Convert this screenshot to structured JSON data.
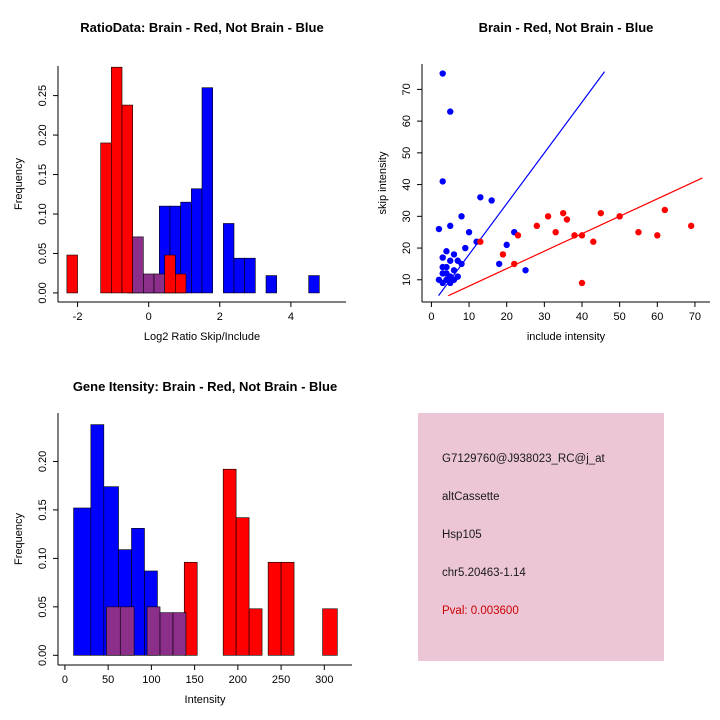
{
  "page": {
    "background": "#ffffff"
  },
  "colors": {
    "brain_red": "#FF0000",
    "not_brain_blue": "#0000FF",
    "overlap_purple": "#8B2F8B",
    "info_bg": "#ECC6D6",
    "pval_red": "#CC0000",
    "text_dark": "#1A1A1A"
  },
  "info_panel": {
    "bg": "#ECC6D6",
    "lines": [
      {
        "text": "G7129760@J938023_RC@j_at",
        "color": "#1A1A1A"
      },
      {
        "text": "altCassette",
        "color": "#1A1A1A"
      },
      {
        "text": "Hsp105",
        "color": "#1A1A1A"
      },
      {
        "text": "chr5.20463-1.14",
        "color": "#1A1A1A"
      },
      {
        "text": "Pval: 0.003600",
        "color": "#CC0000"
      }
    ]
  },
  "chart_data": [
    {
      "id": "ratio-hist",
      "type": "bar",
      "subtype": "overlaid-histogram",
      "title": "RatioData: Brain - Red, Not Brain - Blue",
      "xlabel": "Log2 Ratio Skip/Include",
      "ylabel": "Frequency",
      "xlim": [
        -2.55,
        5.55
      ],
      "ylim": [
        -0.0115,
        0.2875
      ],
      "grid": false,
      "xticks": [
        [
          -2,
          "-2"
        ],
        [
          0,
          "0"
        ],
        [
          2,
          "2"
        ],
        [
          4,
          "4"
        ]
      ],
      "yticks": [
        [
          0,
          "0.00"
        ],
        [
          0.05,
          "0.05"
        ],
        [
          0.1,
          "0.10"
        ],
        [
          0.15,
          "0.15"
        ],
        [
          0.2,
          "0.20"
        ],
        [
          0.25,
          "0.25"
        ]
      ],
      "colors": {
        "brain": "#FF0000",
        "not_brain": "#0000FF",
        "overlap": "#8B2F8B"
      },
      "bars": [
        [
          -0.6,
          -0.3,
          0.022,
          "not_brain"
        ],
        [
          -0.3,
          0.0,
          0.022,
          "not_brain"
        ],
        [
          0.0,
          0.3,
          0.022,
          "not_brain"
        ],
        [
          0.3,
          0.6,
          0.11,
          "not_brain"
        ],
        [
          0.6,
          0.9,
          0.11,
          "not_brain"
        ],
        [
          0.9,
          1.2,
          0.115,
          "not_brain"
        ],
        [
          1.2,
          1.5,
          0.132,
          "not_brain"
        ],
        [
          1.5,
          1.8,
          0.26,
          "not_brain"
        ],
        [
          2.1,
          2.4,
          0.088,
          "not_brain"
        ],
        [
          2.4,
          2.7,
          0.044,
          "not_brain"
        ],
        [
          2.7,
          3.0,
          0.044,
          "not_brain"
        ],
        [
          3.3,
          3.6,
          0.022,
          "not_brain"
        ],
        [
          4.5,
          4.8,
          0.022,
          "not_brain"
        ],
        [
          -2.3,
          -2.0,
          0.048,
          "brain"
        ],
        [
          -1.35,
          -1.05,
          0.19,
          "brain"
        ],
        [
          -1.05,
          -0.75,
          0.286,
          "brain"
        ],
        [
          -0.75,
          -0.45,
          0.238,
          "brain"
        ],
        [
          0.45,
          0.75,
          0.048,
          "brain"
        ],
        [
          0.75,
          1.05,
          0.024,
          "brain"
        ],
        [
          -0.45,
          -0.15,
          0.071,
          "overlap"
        ],
        [
          -0.15,
          0.15,
          0.024,
          "overlap"
        ],
        [
          0.15,
          0.45,
          0.024,
          "overlap"
        ]
      ],
      "plot": {
        "l": 58,
        "r": 346,
        "t": 66,
        "b": 302
      },
      "title_y": 32
    },
    {
      "id": "intensity-scatter",
      "type": "scatter",
      "title": "Brain - Red, Not Brain - Blue",
      "xlabel": "include intensity",
      "ylabel": "skip intensity",
      "xlim": [
        -2.5,
        74
      ],
      "ylim": [
        3,
        78
      ],
      "grid": false,
      "xticks": [
        [
          0,
          "0"
        ],
        [
          10,
          "10"
        ],
        [
          20,
          "20"
        ],
        [
          30,
          "30"
        ],
        [
          40,
          "40"
        ],
        [
          50,
          "50"
        ],
        [
          60,
          "60"
        ],
        [
          70,
          "70"
        ]
      ],
      "yticks": [
        [
          10,
          "10"
        ],
        [
          20,
          "20"
        ],
        [
          30,
          "30"
        ],
        [
          40,
          "40"
        ],
        [
          50,
          "50"
        ],
        [
          60,
          "60"
        ],
        [
          70,
          "70"
        ]
      ],
      "colors": {
        "brain": "#FF0000",
        "not_brain": "#0000FF"
      },
      "points": {
        "not_brain": [
          [
            3,
            75
          ],
          [
            5,
            63
          ],
          [
            3,
            41
          ],
          [
            13,
            36
          ],
          [
            16,
            35
          ],
          [
            8,
            30
          ],
          [
            5,
            27
          ],
          [
            2,
            26
          ],
          [
            10,
            25
          ],
          [
            22,
            25
          ],
          [
            12,
            22
          ],
          [
            20,
            21
          ],
          [
            9,
            20
          ],
          [
            4,
            19
          ],
          [
            6,
            18
          ],
          [
            3,
            17
          ],
          [
            5,
            16
          ],
          [
            7,
            16
          ],
          [
            8,
            15
          ],
          [
            18,
            15
          ],
          [
            4,
            14
          ],
          [
            3,
            14
          ],
          [
            6,
            13
          ],
          [
            25,
            13
          ],
          [
            3,
            12
          ],
          [
            4,
            12
          ],
          [
            5,
            11
          ],
          [
            7,
            11
          ],
          [
            2,
            10
          ],
          [
            4,
            10
          ],
          [
            6,
            10
          ],
          [
            3,
            9
          ],
          [
            5,
            9
          ]
        ],
        "brain": [
          [
            13,
            22
          ],
          [
            19,
            18
          ],
          [
            22,
            15
          ],
          [
            23,
            24
          ],
          [
            28,
            27
          ],
          [
            31,
            30
          ],
          [
            33,
            25
          ],
          [
            35,
            31
          ],
          [
            36,
            29
          ],
          [
            38,
            24
          ],
          [
            40,
            24
          ],
          [
            40,
            9
          ],
          [
            43,
            22
          ],
          [
            45,
            31
          ],
          [
            50,
            30
          ],
          [
            55,
            25
          ],
          [
            60,
            24
          ],
          [
            62,
            32
          ],
          [
            69,
            27
          ]
        ]
      },
      "lines": [
        {
          "series": "not_brain",
          "x1": 1.9,
          "y1": 5,
          "x2": 46,
          "y2": 75.6
        },
        {
          "series": "brain",
          "x1": 4.5,
          "y1": 5,
          "x2": 72,
          "y2": 42.1
        }
      ],
      "plot": {
        "l": 62,
        "r": 350,
        "t": 64,
        "b": 302
      },
      "title_y": 32
    },
    {
      "id": "gene-intensity-hist",
      "type": "bar",
      "subtype": "overlaid-histogram",
      "title": "Gene Itensity: Brain - Red, Not Brain - Blue",
      "xlabel": "Intensity",
      "ylabel": "Frequency",
      "xlim": [
        -8,
        332
      ],
      "ylim": [
        -0.01,
        0.25
      ],
      "grid": false,
      "xticks": [
        [
          0,
          "0"
        ],
        [
          50,
          "50"
        ],
        [
          100,
          "100"
        ],
        [
          150,
          "150"
        ],
        [
          200,
          "200"
        ],
        [
          250,
          "250"
        ],
        [
          300,
          "300"
        ]
      ],
      "yticks": [
        [
          0,
          "0.00"
        ],
        [
          0.05,
          "0.05"
        ],
        [
          0.1,
          "0.10"
        ],
        [
          0.15,
          "0.15"
        ],
        [
          0.2,
          "0.20"
        ]
      ],
      "colors": {
        "brain": "#FF0000",
        "not_brain": "#0000FF",
        "overlap": "#8B2F8B"
      },
      "bars": [
        [
          10,
          30,
          0.152,
          "not_brain"
        ],
        [
          30,
          45,
          0.238,
          "not_brain"
        ],
        [
          45,
          62,
          0.174,
          "not_brain"
        ],
        [
          62,
          77,
          0.109,
          "not_brain"
        ],
        [
          77,
          92,
          0.131,
          "not_brain"
        ],
        [
          92,
          107,
          0.087,
          "not_brain"
        ],
        [
          138,
          153,
          0.096,
          "brain"
        ],
        [
          183,
          198,
          0.192,
          "brain"
        ],
        [
          198,
          213,
          0.142,
          "brain"
        ],
        [
          213,
          228,
          0.048,
          "brain"
        ],
        [
          235,
          250,
          0.096,
          "brain"
        ],
        [
          250,
          265,
          0.096,
          "brain"
        ],
        [
          298,
          315,
          0.048,
          "brain"
        ],
        [
          48,
          64,
          0.05,
          "overlap"
        ],
        [
          64,
          80,
          0.05,
          "overlap"
        ],
        [
          95,
          110,
          0.05,
          "overlap"
        ],
        [
          110,
          125,
          0.044,
          "overlap"
        ],
        [
          125,
          140,
          0.044,
          "overlap"
        ]
      ],
      "plot": {
        "l": 58,
        "r": 352,
        "t": 38,
        "b": 290
      },
      "title_y": 16
    }
  ]
}
